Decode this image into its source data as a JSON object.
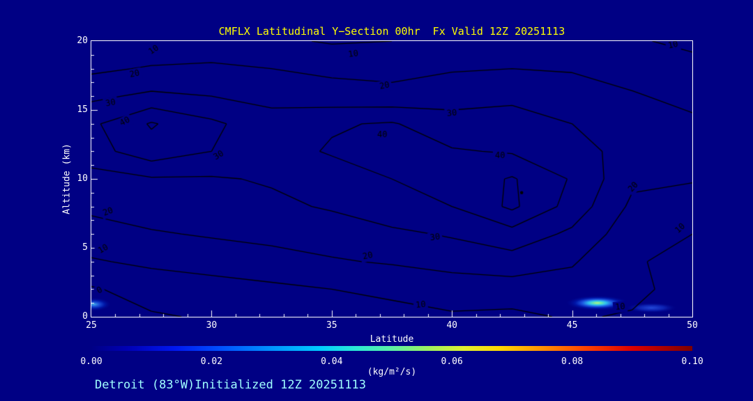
{
  "colors": {
    "background": "#000084",
    "contour_line": "#000000",
    "axis": "#FFFFFF",
    "tick_label": "#FFFFFF",
    "title": "#FFFF00",
    "footer": "#A0FFFF"
  },
  "title": {
    "text": "CMFLX Latitudinal Y−Section 00hr  Fx Valid 12Z 20251113"
  },
  "footer": {
    "text": "Detroit (83°W)Initialized 12Z 20251113"
  },
  "chart_data": {
    "type": "heatmap",
    "subtype": "contour-section",
    "title": "CMFLX Latitudinal Y−Section 00hr  Fx Valid 12Z 20251113",
    "xlabel": "Latitude",
    "ylabel": "Altitude (km)",
    "xlim": [
      25,
      50
    ],
    "ylim": [
      0,
      20
    ],
    "x_ticks": [
      25,
      30,
      35,
      40,
      45,
      50
    ],
    "y_ticks": [
      0,
      5,
      10,
      15,
      20
    ],
    "x_minor_step": 1,
    "y_minor_step": 1,
    "grid": false,
    "x": [
      25,
      27.5,
      30,
      32.5,
      35,
      37.5,
      40,
      42.5,
      45,
      47.5,
      50
    ],
    "y": [
      20,
      18,
      16,
      14,
      12,
      10,
      8,
      6,
      4,
      2,
      0
    ],
    "values": [
      [
        11,
        12,
        13,
        12,
        9,
        10,
        12,
        13,
        12,
        11,
        8
      ],
      [
        18,
        21,
        22,
        20,
        18,
        17,
        19,
        20,
        19,
        16,
        13
      ],
      [
        28,
        32,
        30,
        27,
        24,
        23,
        27,
        28,
        26,
        21,
        17
      ],
      [
        38,
        51,
        42,
        34,
        39,
        41,
        33,
        34,
        30,
        25,
        22
      ],
      [
        36,
        46,
        40,
        36,
        41,
        43,
        41,
        39,
        33,
        27,
        26
      ],
      [
        26,
        29,
        29,
        31,
        35,
        40,
        43,
        51,
        39,
        22,
        21
      ],
      [
        22,
        25,
        26,
        28,
        31,
        36,
        40,
        52,
        36,
        18,
        14
      ],
      [
        16,
        19,
        21,
        23,
        25,
        28,
        31,
        36,
        28,
        14,
        10
      ],
      [
        9,
        12,
        14,
        16,
        19,
        21,
        24,
        26,
        21,
        11,
        7
      ],
      [
        -1,
        4,
        6,
        8,
        10,
        12,
        14,
        15,
        16,
        13,
        5
      ],
      [
        -4,
        -1,
        1,
        4,
        5,
        7,
        9,
        8,
        11,
        9,
        3
      ]
    ],
    "contour_levels": [
      0,
      10,
      20,
      30,
      40,
      50
    ],
    "contour_labels": [
      {
        "level": 10,
        "lat": 27.6,
        "alt": 19.35,
        "rot": -35
      },
      {
        "level": 20,
        "lat": 26.8,
        "alt": 17.6,
        "rot": -12
      },
      {
        "level": 30,
        "lat": 25.8,
        "alt": 15.5,
        "rot": -10
      },
      {
        "level": 40,
        "lat": 26.4,
        "alt": 14.15,
        "rot": -28
      },
      {
        "level": 10,
        "lat": 35.9,
        "alt": 19.05,
        "rot": -8
      },
      {
        "level": 20,
        "lat": 37.2,
        "alt": 16.75,
        "rot": -12
      },
      {
        "level": 30,
        "lat": 30.3,
        "alt": 11.7,
        "rot": -32
      },
      {
        "level": 40,
        "lat": 37.1,
        "alt": 13.2,
        "rot": 0
      },
      {
        "level": 30,
        "lat": 40.0,
        "alt": 14.75,
        "rot": -6
      },
      {
        "level": 40,
        "lat": 42.0,
        "alt": 11.65,
        "rot": 0
      },
      {
        "level": 10,
        "lat": 49.2,
        "alt": 19.7,
        "rot": -12
      },
      {
        "level": 20,
        "lat": 25.7,
        "alt": 7.6,
        "rot": -22
      },
      {
        "level": 10,
        "lat": 25.5,
        "alt": 4.9,
        "rot": -30
      },
      {
        "level": 0,
        "lat": 25.35,
        "alt": 1.9,
        "rot": -28
      },
      {
        "level": 20,
        "lat": 36.5,
        "alt": 4.4,
        "rot": -12
      },
      {
        "level": 30,
        "lat": 39.3,
        "alt": 5.75,
        "rot": -8
      },
      {
        "level": 10,
        "lat": 38.7,
        "alt": 0.85,
        "rot": -5
      },
      {
        "level": 20,
        "lat": 47.55,
        "alt": 9.4,
        "rot": -48
      },
      {
        "level": 10,
        "lat": 49.5,
        "alt": 6.4,
        "rot": -42
      },
      {
        "level": 10,
        "lat": 47.0,
        "alt": 0.7,
        "rot": -5
      }
    ],
    "max_marker": {
      "lat": 42.9,
      "alt": 9.0
    },
    "fill_blobs": [
      {
        "lat": 46.05,
        "alt": 1.0,
        "rx_lat": 1.35,
        "ry_alt": 0.55,
        "stops": [
          [
            0,
            "#c8f080"
          ],
          [
            0.13,
            "#66e8b0"
          ],
          [
            0.27,
            "#30c0f0"
          ],
          [
            0.47,
            "#1c54e0"
          ],
          [
            0.68,
            "#0016a8"
          ],
          [
            1,
            "rgba(0,0,132,0)"
          ]
        ]
      },
      {
        "lat": 48.3,
        "alt": 0.65,
        "rx_lat": 1.1,
        "ry_alt": 0.38,
        "stops": [
          [
            0,
            "#2448d8"
          ],
          [
            0.5,
            "#0c20b0"
          ],
          [
            1,
            "rgba(0,0,132,0)"
          ]
        ]
      },
      {
        "lat": 25.1,
        "alt": 0.9,
        "rx_lat": 0.75,
        "ry_alt": 0.5,
        "stops": [
          [
            0,
            "#40b0e8"
          ],
          [
            0.3,
            "#1c50d8"
          ],
          [
            0.6,
            "#0018a8"
          ],
          [
            1,
            "rgba(0,0,132,0)"
          ]
        ]
      }
    ],
    "colorbar": {
      "min": 0.0,
      "max": 0.1,
      "tick_labels": [
        "0.00",
        "0.02",
        "0.04",
        "0.06",
        "0.08",
        "0.10"
      ],
      "units": "(kg/m²/s)",
      "gradient_stops": [
        [
          0,
          "#000084"
        ],
        [
          0.06,
          "#0000b4"
        ],
        [
          0.14,
          "#0018f0"
        ],
        [
          0.22,
          "#0054ff"
        ],
        [
          0.3,
          "#0094ff"
        ],
        [
          0.38,
          "#00ccff"
        ],
        [
          0.44,
          "#2ce8d4"
        ],
        [
          0.5,
          "#5cf0a4"
        ],
        [
          0.56,
          "#9cf060"
        ],
        [
          0.62,
          "#e0f030"
        ],
        [
          0.68,
          "#ffd800"
        ],
        [
          0.75,
          "#ff9000"
        ],
        [
          0.82,
          "#ff4400"
        ],
        [
          0.9,
          "#dc0000"
        ],
        [
          1,
          "#7c0000"
        ]
      ]
    }
  }
}
